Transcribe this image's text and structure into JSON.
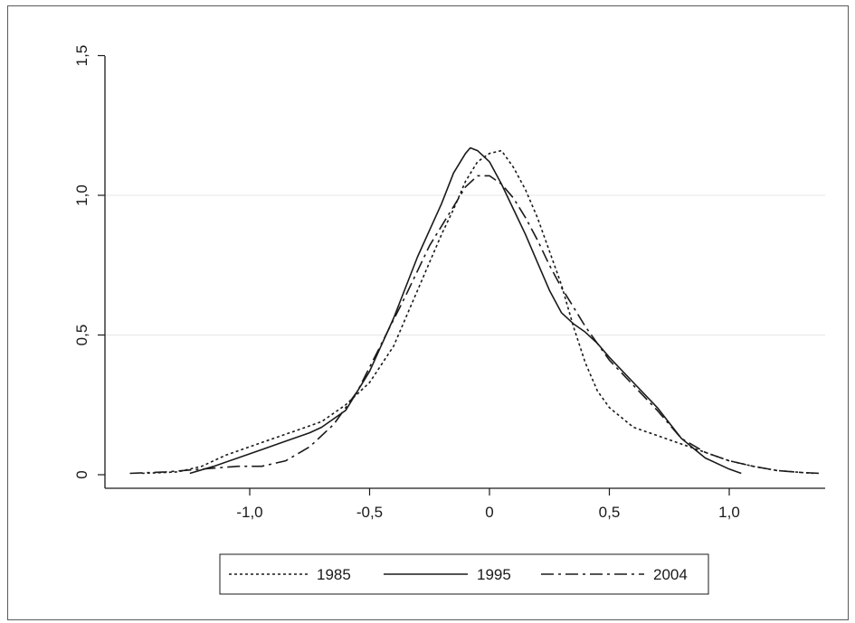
{
  "chart_data": {
    "type": "line",
    "title": "",
    "xlabel": "",
    "ylabel": "",
    "xlim": [
      -1.5,
      1.38
    ],
    "ylim": [
      0,
      1.5
    ],
    "x_ticks": [
      {
        "value": -1.0,
        "label": "-1,0"
      },
      {
        "value": -0.5,
        "label": "-0,5"
      },
      {
        "value": 0.0,
        "label": "0"
      },
      {
        "value": 0.5,
        "label": "0,5"
      },
      {
        "value": 1.0,
        "label": "1,0"
      }
    ],
    "y_ticks": [
      {
        "value": 0.0,
        "label": "0"
      },
      {
        "value": 0.5,
        "label": "0,5"
      },
      {
        "value": 1.0,
        "label": "1,0"
      },
      {
        "value": 1.5,
        "label": "1,5"
      }
    ],
    "grid": "horizontal",
    "legend_position": "bottom",
    "colors": {
      "line": "#1a1a1a",
      "grid": "#e6e6e6",
      "axis": "#1a1a1a"
    },
    "series": [
      {
        "name": "1985",
        "style": "dotted",
        "points": [
          [
            -1.45,
            0.005
          ],
          [
            -1.3,
            0.01
          ],
          [
            -1.2,
            0.03
          ],
          [
            -1.1,
            0.07
          ],
          [
            -1.0,
            0.1
          ],
          [
            -0.9,
            0.13
          ],
          [
            -0.8,
            0.16
          ],
          [
            -0.7,
            0.19
          ],
          [
            -0.6,
            0.25
          ],
          [
            -0.5,
            0.33
          ],
          [
            -0.4,
            0.46
          ],
          [
            -0.3,
            0.66
          ],
          [
            -0.2,
            0.86
          ],
          [
            -0.15,
            0.95
          ],
          [
            -0.1,
            1.05
          ],
          [
            -0.05,
            1.12
          ],
          [
            0.0,
            1.15
          ],
          [
            0.05,
            1.16
          ],
          [
            0.1,
            1.1
          ],
          [
            0.15,
            1.02
          ],
          [
            0.2,
            0.92
          ],
          [
            0.25,
            0.8
          ],
          [
            0.3,
            0.68
          ],
          [
            0.35,
            0.53
          ],
          [
            0.4,
            0.4
          ],
          [
            0.45,
            0.3
          ],
          [
            0.5,
            0.24
          ],
          [
            0.6,
            0.17
          ],
          [
            0.7,
            0.14
          ],
          [
            0.8,
            0.11
          ],
          [
            0.9,
            0.08
          ],
          [
            1.0,
            0.05
          ],
          [
            1.1,
            0.03
          ],
          [
            1.2,
            0.015
          ],
          [
            1.3,
            0.008
          ],
          [
            1.35,
            0.005
          ]
        ]
      },
      {
        "name": "1995",
        "style": "solid",
        "points": [
          [
            -1.25,
            0.005
          ],
          [
            -1.15,
            0.03
          ],
          [
            -1.05,
            0.06
          ],
          [
            -0.95,
            0.09
          ],
          [
            -0.85,
            0.12
          ],
          [
            -0.75,
            0.15
          ],
          [
            -0.7,
            0.17
          ],
          [
            -0.6,
            0.23
          ],
          [
            -0.5,
            0.37
          ],
          [
            -0.4,
            0.56
          ],
          [
            -0.3,
            0.78
          ],
          [
            -0.2,
            0.97
          ],
          [
            -0.15,
            1.08
          ],
          [
            -0.1,
            1.15
          ],
          [
            -0.08,
            1.17
          ],
          [
            -0.05,
            1.16
          ],
          [
            0.0,
            1.12
          ],
          [
            0.05,
            1.04
          ],
          [
            0.1,
            0.95
          ],
          [
            0.15,
            0.86
          ],
          [
            0.2,
            0.76
          ],
          [
            0.25,
            0.66
          ],
          [
            0.3,
            0.58
          ],
          [
            0.35,
            0.54
          ],
          [
            0.4,
            0.51
          ],
          [
            0.45,
            0.47
          ],
          [
            0.5,
            0.42
          ],
          [
            0.6,
            0.33
          ],
          [
            0.7,
            0.24
          ],
          [
            0.8,
            0.13
          ],
          [
            0.9,
            0.06
          ],
          [
            1.0,
            0.02
          ],
          [
            1.05,
            0.005
          ]
        ]
      },
      {
        "name": "2004",
        "style": "dashdot",
        "points": [
          [
            -1.5,
            0.005
          ],
          [
            -1.35,
            0.01
          ],
          [
            -1.2,
            0.02
          ],
          [
            -1.05,
            0.03
          ],
          [
            -0.95,
            0.03
          ],
          [
            -0.85,
            0.05
          ],
          [
            -0.75,
            0.1
          ],
          [
            -0.65,
            0.18
          ],
          [
            -0.55,
            0.3
          ],
          [
            -0.45,
            0.47
          ],
          [
            -0.35,
            0.64
          ],
          [
            -0.25,
            0.82
          ],
          [
            -0.15,
            0.96
          ],
          [
            -0.1,
            1.03
          ],
          [
            -0.05,
            1.07
          ],
          [
            0.0,
            1.07
          ],
          [
            0.05,
            1.04
          ],
          [
            0.1,
            0.99
          ],
          [
            0.15,
            0.92
          ],
          [
            0.2,
            0.84
          ],
          [
            0.25,
            0.75
          ],
          [
            0.3,
            0.67
          ],
          [
            0.35,
            0.6
          ],
          [
            0.4,
            0.53
          ],
          [
            0.5,
            0.41
          ],
          [
            0.6,
            0.32
          ],
          [
            0.7,
            0.23
          ],
          [
            0.8,
            0.13
          ],
          [
            0.9,
            0.08
          ],
          [
            1.0,
            0.05
          ],
          [
            1.1,
            0.03
          ],
          [
            1.2,
            0.015
          ],
          [
            1.3,
            0.008
          ],
          [
            1.38,
            0.005
          ]
        ]
      }
    ]
  }
}
